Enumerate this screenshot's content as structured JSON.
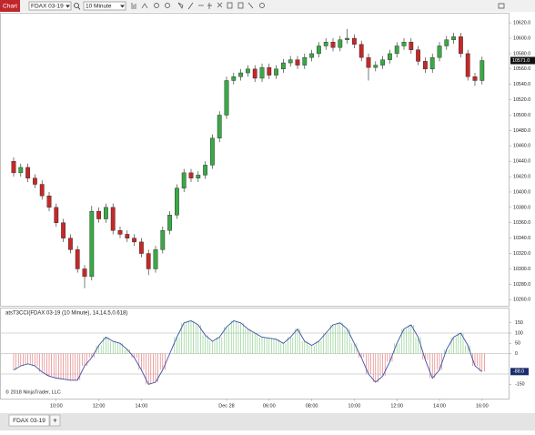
{
  "toolbar": {
    "tab": "Chart",
    "instrument": "FDAX 03-19",
    "interval": "10 Minute"
  },
  "copyright": "© 2018 NinjaTrader, LLC",
  "tabs": {
    "active": "FDAX 03-19",
    "add": "+"
  },
  "chart_data": [
    {
      "type": "candlestick",
      "categories": [
        null,
        null,
        null,
        null,
        null,
        null,
        "10:00",
        null,
        null,
        null,
        null,
        null,
        "12:00",
        null,
        null,
        null,
        null,
        null,
        "14:00",
        null,
        null,
        null,
        null,
        null,
        null,
        null,
        null,
        null,
        null,
        null,
        "Dec 28",
        null,
        null,
        null,
        null,
        null,
        "06:00",
        null,
        null,
        null,
        null,
        null,
        "08:00",
        null,
        null,
        null,
        null,
        null,
        "10:00",
        null,
        null,
        null,
        null,
        null,
        "12:00",
        null,
        null,
        null,
        null,
        null,
        "14:00",
        null,
        null,
        null,
        null,
        null,
        "16:00"
      ],
      "open": [
        10440,
        10425,
        10432,
        10418,
        10410,
        10395,
        10380,
        10360,
        10340,
        10325,
        10300,
        10290,
        10375,
        10365,
        10380,
        10350,
        10345,
        10340,
        10335,
        10320,
        10300,
        10325,
        10350,
        10370,
        10405,
        10425,
        10418,
        10422,
        10435,
        10470,
        10500,
        10545,
        10550,
        10555,
        10560,
        10548,
        10562,
        10552,
        10560,
        10568,
        10572,
        10565,
        10575,
        10580,
        10590,
        10595,
        10588,
        10598,
        10600,
        10592,
        10575,
        10562,
        10565,
        10572,
        10580,
        10590,
        10595,
        10585,
        10570,
        10560,
        10575,
        10590,
        10598,
        10602,
        10580,
        10550,
        10545
      ],
      "high": [
        10445,
        10437,
        10437,
        10423,
        10415,
        10400,
        10385,
        10365,
        10345,
        10330,
        10305,
        10382,
        10380,
        10385,
        10385,
        10355,
        10350,
        10345,
        10340,
        10325,
        10330,
        10355,
        10375,
        10410,
        10430,
        10430,
        10427,
        10440,
        10475,
        10505,
        10550,
        10555,
        10560,
        10565,
        10565,
        10567,
        10567,
        10565,
        10573,
        10577,
        10577,
        10580,
        10585,
        10595,
        10600,
        10600,
        10603,
        10612,
        10605,
        10597,
        10580,
        10570,
        10577,
        10585,
        10595,
        10600,
        10600,
        10590,
        10575,
        10580,
        10595,
        10603,
        10607,
        10607,
        10585,
        10555,
        10576
      ],
      "low": [
        10420,
        10420,
        10413,
        10405,
        10390,
        10375,
        10355,
        10335,
        10320,
        10295,
        10275,
        10285,
        10360,
        10360,
        10345,
        10340,
        10335,
        10330,
        10315,
        10292,
        10295,
        10320,
        10345,
        10365,
        10400,
        10413,
        10413,
        10417,
        10430,
        10465,
        10495,
        10540,
        10545,
        10550,
        10543,
        10543,
        10547,
        10547,
        10555,
        10563,
        10560,
        10560,
        10570,
        10575,
        10585,
        10583,
        10583,
        10593,
        10587,
        10570,
        10545,
        10557,
        10560,
        10567,
        10575,
        10585,
        10580,
        10565,
        10555,
        10555,
        10570,
        10585,
        10593,
        10575,
        10545,
        10538,
        10540
      ],
      "close": [
        10425,
        10432,
        10418,
        10410,
        10395,
        10380,
        10360,
        10340,
        10325,
        10300,
        10290,
        10375,
        10365,
        10380,
        10350,
        10345,
        10340,
        10335,
        10320,
        10300,
        10325,
        10350,
        10370,
        10405,
        10425,
        10418,
        10422,
        10435,
        10470,
        10500,
        10545,
        10550,
        10555,
        10560,
        10548,
        10562,
        10552,
        10560,
        10568,
        10572,
        10565,
        10575,
        10580,
        10590,
        10595,
        10588,
        10598,
        10600,
        10592,
        10575,
        10562,
        10565,
        10572,
        10580,
        10590,
        10595,
        10585,
        10570,
        10560,
        10575,
        10590,
        10598,
        10602,
        10580,
        10550,
        10545,
        10571
      ],
      "up_color": "#3aa846",
      "down_color": "#c62828",
      "ylim": [
        10252,
        10632
      ],
      "yticks": [
        {
          "value": 10260,
          "label": "10260.0"
        },
        {
          "value": 10280,
          "label": "10280.0"
        },
        {
          "value": 10300,
          "label": "10300.0"
        },
        {
          "value": 10320,
          "label": "10320.0"
        },
        {
          "value": 10340,
          "label": "10340.0"
        },
        {
          "value": 10360,
          "label": "10360.0"
        },
        {
          "value": 10380,
          "label": "10380.0"
        },
        {
          "value": 10400,
          "label": "10400.0"
        },
        {
          "value": 10420,
          "label": "10420.0"
        },
        {
          "value": 10440,
          "label": "10440.0"
        },
        {
          "value": 10460,
          "label": "10460.0"
        },
        {
          "value": 10480,
          "label": "10480.0"
        },
        {
          "value": 10500,
          "label": "10500.0"
        },
        {
          "value": 10520,
          "label": "10520.0"
        },
        {
          "value": 10540,
          "label": "10540.0"
        },
        {
          "value": 10560,
          "label": "10560.0"
        },
        {
          "value": 10580,
          "label": "10580.0"
        },
        {
          "value": 10600,
          "label": "10600.0"
        },
        {
          "value": 10620,
          "label": "10620.0"
        }
      ],
      "last_label": "10571.0"
    },
    {
      "type": "oscillator",
      "title": "atsT3CCI(FDAX 03-19 (10 Minute), 14,14,5,0.618)",
      "values": [
        -80,
        -60,
        -50,
        -60,
        -90,
        -110,
        -120,
        -125,
        -130,
        -130,
        -60,
        -20,
        40,
        80,
        60,
        50,
        20,
        -20,
        -80,
        -150,
        -140,
        -80,
        0,
        80,
        150,
        160,
        140,
        90,
        60,
        80,
        130,
        160,
        150,
        120,
        100,
        80,
        75,
        70,
        50,
        80,
        120,
        60,
        40,
        60,
        100,
        140,
        150,
        120,
        50,
        -20,
        -100,
        -140,
        -110,
        -40,
        50,
        120,
        140,
        80,
        -30,
        -120,
        -80,
        20,
        80,
        100,
        40,
        -60,
        -88
      ],
      "pos_color": "#7cc97c",
      "neg_color": "#e06a6a",
      "line_color": "#3b4fa8",
      "ylim": [
        -220,
        220
      ],
      "yticks": [
        150,
        100,
        50,
        0,
        -150
      ],
      "levels": [
        100,
        0,
        -100
      ],
      "last_label": "-88.0"
    }
  ]
}
